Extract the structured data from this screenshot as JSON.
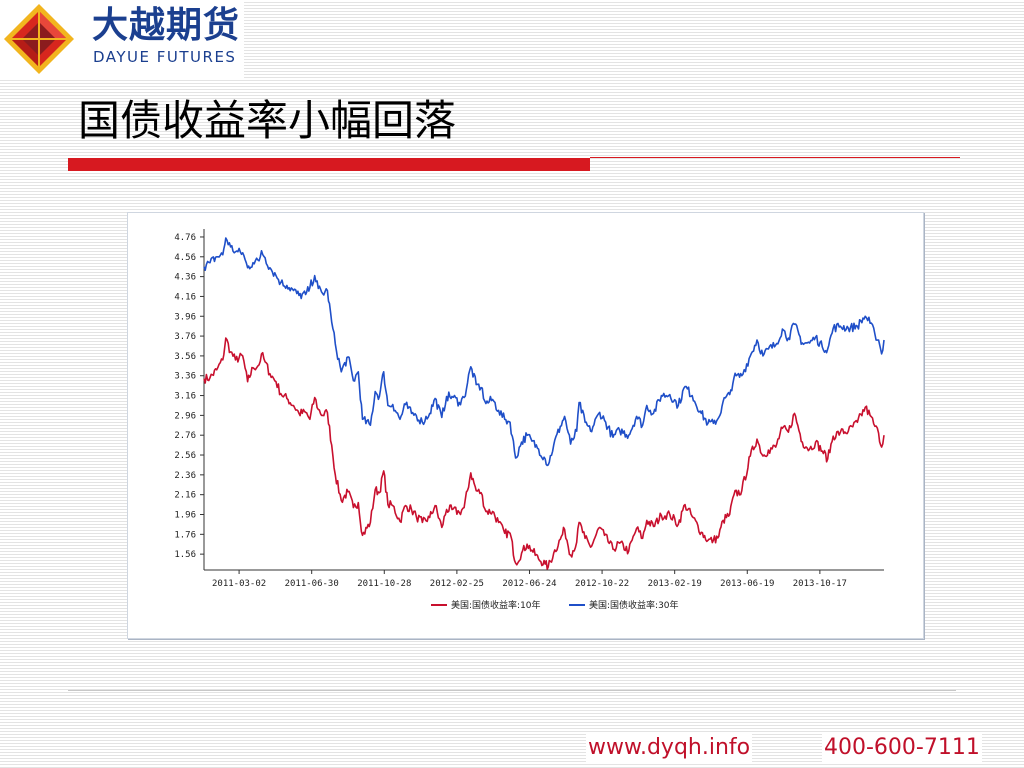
{
  "logo": {
    "cn": "大越期货",
    "en": "DAYUE FUTURES"
  },
  "slide": {
    "title": "国债收益率小幅回落"
  },
  "footer": {
    "url": "www.dyqh.info",
    "phone": "400-600-7111"
  },
  "colors": {
    "accent": "#d71920",
    "series_10y": "#c8102e",
    "series_30y": "#1f4fc8",
    "logo_blue": "#1b3f8f"
  },
  "chart_data": {
    "type": "line",
    "title": "",
    "xlabel": "",
    "ylabel": "",
    "ylim": [
      1.4,
      4.8
    ],
    "grid": false,
    "legend_position": "bottom-center",
    "y_ticks": [
      "4.76",
      "4.56",
      "4.36",
      "4.16",
      "3.96",
      "3.76",
      "3.56",
      "3.36",
      "3.16",
      "2.96",
      "2.76",
      "2.56",
      "2.36",
      "2.16",
      "1.96",
      "1.76",
      "1.56"
    ],
    "x_ticks": [
      "2011-03-02",
      "2011-06-30",
      "2011-10-28",
      "2012-02-25",
      "2012-06-24",
      "2012-10-22",
      "2013-02-19",
      "2013-06-19",
      "2013-10-17"
    ],
    "x_range": [
      "2011-01-03",
      "2014-01-31"
    ],
    "series": [
      {
        "name": "美国:国债收益率:10年",
        "color": "#c8102e",
        "points": [
          [
            "2011-01-03",
            3.33
          ],
          [
            "2011-01-13",
            3.34
          ],
          [
            "2011-01-24",
            3.42
          ],
          [
            "2011-02-03",
            3.52
          ],
          [
            "2011-02-08",
            3.74
          ],
          [
            "2011-02-16",
            3.6
          ],
          [
            "2011-02-24",
            3.52
          ],
          [
            "2011-03-08",
            3.56
          ],
          [
            "2011-03-16",
            3.3
          ],
          [
            "2011-03-25",
            3.44
          ],
          [
            "2011-04-04",
            3.47
          ],
          [
            "2011-04-08",
            3.58
          ],
          [
            "2011-04-14",
            3.5
          ],
          [
            "2011-04-22",
            3.38
          ],
          [
            "2011-05-02",
            3.3
          ],
          [
            "2011-05-10",
            3.18
          ],
          [
            "2011-05-20",
            3.13
          ],
          [
            "2011-05-31",
            3.06
          ],
          [
            "2011-06-09",
            2.98
          ],
          [
            "2011-06-20",
            2.99
          ],
          [
            "2011-06-27",
            2.92
          ],
          [
            "2011-07-05",
            3.14
          ],
          [
            "2011-07-11",
            3.02
          ],
          [
            "2011-07-18",
            2.96
          ],
          [
            "2011-07-26",
            2.99
          ],
          [
            "2011-08-02",
            2.66
          ],
          [
            "2011-08-08",
            2.36
          ],
          [
            "2011-08-18",
            2.1
          ],
          [
            "2011-08-29",
            2.19
          ],
          [
            "2011-09-07",
            2.03
          ],
          [
            "2011-09-15",
            2.08
          ],
          [
            "2011-09-22",
            1.75
          ],
          [
            "2011-10-05",
            1.88
          ],
          [
            "2011-10-13",
            2.21
          ],
          [
            "2011-10-20",
            2.18
          ],
          [
            "2011-10-27",
            2.4
          ],
          [
            "2011-11-03",
            2.06
          ],
          [
            "2011-11-11",
            2.05
          ],
          [
            "2011-11-23",
            1.89
          ],
          [
            "2011-12-02",
            2.05
          ],
          [
            "2011-12-12",
            2.01
          ],
          [
            "2011-12-20",
            1.94
          ],
          [
            "2011-12-30",
            1.88
          ],
          [
            "2012-01-11",
            1.93
          ],
          [
            "2012-01-20",
            2.05
          ],
          [
            "2012-01-31",
            1.83
          ],
          [
            "2012-02-08",
            2.01
          ],
          [
            "2012-02-17",
            2.01
          ],
          [
            "2012-02-29",
            1.98
          ],
          [
            "2012-03-08",
            2.03
          ],
          [
            "2012-03-19",
            2.38
          ],
          [
            "2012-03-28",
            2.2
          ],
          [
            "2012-04-05",
            2.18
          ],
          [
            "2012-04-13",
            1.99
          ],
          [
            "2012-04-24",
            1.99
          ],
          [
            "2012-05-04",
            1.88
          ],
          [
            "2012-05-14",
            1.77
          ],
          [
            "2012-05-23",
            1.77
          ],
          [
            "2012-06-01",
            1.47
          ],
          [
            "2012-06-11",
            1.57
          ],
          [
            "2012-06-20",
            1.66
          ],
          [
            "2012-06-28",
            1.6
          ],
          [
            "2012-07-09",
            1.51
          ],
          [
            "2012-07-20",
            1.46
          ],
          [
            "2012-07-25",
            1.43
          ],
          [
            "2012-08-03",
            1.57
          ],
          [
            "2012-08-14",
            1.71
          ],
          [
            "2012-08-21",
            1.81
          ],
          [
            "2012-08-31",
            1.55
          ],
          [
            "2012-09-10",
            1.68
          ],
          [
            "2012-09-14",
            1.88
          ],
          [
            "2012-09-24",
            1.72
          ],
          [
            "2012-10-03",
            1.63
          ],
          [
            "2012-10-18",
            1.83
          ],
          [
            "2012-10-26",
            1.75
          ],
          [
            "2012-11-09",
            1.61
          ],
          [
            "2012-11-20",
            1.67
          ],
          [
            "2012-12-05",
            1.59
          ],
          [
            "2012-12-18",
            1.82
          ],
          [
            "2012-12-28",
            1.72
          ],
          [
            "2013-01-04",
            1.9
          ],
          [
            "2013-01-15",
            1.84
          ],
          [
            "2013-01-28",
            1.95
          ],
          [
            "2013-02-11",
            1.96
          ],
          [
            "2013-02-25",
            1.86
          ],
          [
            "2013-03-08",
            2.06
          ],
          [
            "2013-03-20",
            1.94
          ],
          [
            "2013-04-04",
            1.78
          ],
          [
            "2013-04-15",
            1.7
          ],
          [
            "2013-04-24",
            1.7
          ],
          [
            "2013-05-03",
            1.74
          ],
          [
            "2013-05-10",
            1.9
          ],
          [
            "2013-05-21",
            1.96
          ],
          [
            "2013-05-28",
            2.16
          ],
          [
            "2013-06-10",
            2.2
          ],
          [
            "2013-06-24",
            2.55
          ],
          [
            "2013-07-05",
            2.72
          ],
          [
            "2013-07-15",
            2.55
          ],
          [
            "2013-07-24",
            2.61
          ],
          [
            "2013-08-05",
            2.64
          ],
          [
            "2013-08-16",
            2.83
          ],
          [
            "2013-08-26",
            2.79
          ],
          [
            "2013-09-05",
            2.98
          ],
          [
            "2013-09-18",
            2.69
          ],
          [
            "2013-09-30",
            2.62
          ],
          [
            "2013-10-10",
            2.69
          ],
          [
            "2013-10-21",
            2.6
          ],
          [
            "2013-10-30",
            2.52
          ],
          [
            "2013-11-08",
            2.75
          ],
          [
            "2013-11-20",
            2.79
          ],
          [
            "2013-12-03",
            2.8
          ],
          [
            "2013-12-18",
            2.89
          ],
          [
            "2013-12-31",
            3.04
          ],
          [
            "2014-01-08",
            2.96
          ],
          [
            "2014-01-16",
            2.85
          ],
          [
            "2014-01-22",
            2.78
          ],
          [
            "2014-01-27",
            2.64
          ],
          [
            "2014-01-31",
            2.76
          ]
        ]
      },
      {
        "name": "美国:国债收益率:30年",
        "color": "#1f4fc8",
        "points": [
          [
            "2011-01-03",
            4.46
          ],
          [
            "2011-01-13",
            4.5
          ],
          [
            "2011-01-24",
            4.56
          ],
          [
            "2011-02-03",
            4.58
          ],
          [
            "2011-02-08",
            4.75
          ],
          [
            "2011-02-16",
            4.66
          ],
          [
            "2011-02-24",
            4.61
          ],
          [
            "2011-03-08",
            4.6
          ],
          [
            "2011-03-16",
            4.45
          ],
          [
            "2011-03-25",
            4.5
          ],
          [
            "2011-04-04",
            4.52
          ],
          [
            "2011-04-08",
            4.62
          ],
          [
            "2011-04-14",
            4.55
          ],
          [
            "2011-04-22",
            4.45
          ],
          [
            "2011-05-02",
            4.37
          ],
          [
            "2011-05-10",
            4.3
          ],
          [
            "2011-05-20",
            4.27
          ],
          [
            "2011-05-31",
            4.22
          ],
          [
            "2011-06-09",
            4.17
          ],
          [
            "2011-06-20",
            4.18
          ],
          [
            "2011-06-27",
            4.25
          ],
          [
            "2011-07-05",
            4.37
          ],
          [
            "2011-07-11",
            4.24
          ],
          [
            "2011-07-18",
            4.19
          ],
          [
            "2011-07-26",
            4.22
          ],
          [
            "2011-08-02",
            3.9
          ],
          [
            "2011-08-08",
            3.68
          ],
          [
            "2011-08-18",
            3.4
          ],
          [
            "2011-08-29",
            3.55
          ],
          [
            "2011-09-07",
            3.31
          ],
          [
            "2011-09-15",
            3.4
          ],
          [
            "2011-09-22",
            2.92
          ],
          [
            "2011-10-05",
            2.86
          ],
          [
            "2011-10-13",
            3.2
          ],
          [
            "2011-10-20",
            3.15
          ],
          [
            "2011-10-27",
            3.4
          ],
          [
            "2011-11-03",
            3.06
          ],
          [
            "2011-11-11",
            3.07
          ],
          [
            "2011-11-23",
            2.92
          ],
          [
            "2011-12-02",
            3.07
          ],
          [
            "2011-12-12",
            2.98
          ],
          [
            "2011-12-20",
            2.96
          ],
          [
            "2011-12-30",
            2.89
          ],
          [
            "2012-01-11",
            2.98
          ],
          [
            "2012-01-20",
            3.13
          ],
          [
            "2012-01-31",
            2.94
          ],
          [
            "2012-02-08",
            3.15
          ],
          [
            "2012-02-17",
            3.15
          ],
          [
            "2012-02-29",
            3.09
          ],
          [
            "2012-03-08",
            3.14
          ],
          [
            "2012-03-19",
            3.45
          ],
          [
            "2012-03-28",
            3.27
          ],
          [
            "2012-04-05",
            3.24
          ],
          [
            "2012-04-13",
            3.08
          ],
          [
            "2012-04-24",
            3.12
          ],
          [
            "2012-05-04",
            3.01
          ],
          [
            "2012-05-14",
            2.92
          ],
          [
            "2012-05-23",
            2.89
          ],
          [
            "2012-06-01",
            2.53
          ],
          [
            "2012-06-11",
            2.69
          ],
          [
            "2012-06-20",
            2.76
          ],
          [
            "2012-06-28",
            2.7
          ],
          [
            "2012-07-09",
            2.62
          ],
          [
            "2012-07-20",
            2.52
          ],
          [
            "2012-07-25",
            2.46
          ],
          [
            "2012-08-03",
            2.66
          ],
          [
            "2012-08-14",
            2.85
          ],
          [
            "2012-08-21",
            2.95
          ],
          [
            "2012-08-31",
            2.67
          ],
          [
            "2012-09-10",
            2.8
          ],
          [
            "2012-09-14",
            3.09
          ],
          [
            "2012-09-24",
            2.89
          ],
          [
            "2012-10-03",
            2.8
          ],
          [
            "2012-10-18",
            2.99
          ],
          [
            "2012-10-26",
            2.91
          ],
          [
            "2012-11-09",
            2.74
          ],
          [
            "2012-11-20",
            2.81
          ],
          [
            "2012-12-05",
            2.76
          ],
          [
            "2012-12-18",
            2.95
          ],
          [
            "2012-12-28",
            2.86
          ],
          [
            "2013-01-04",
            3.06
          ],
          [
            "2013-01-15",
            2.98
          ],
          [
            "2013-01-28",
            3.16
          ],
          [
            "2013-02-11",
            3.17
          ],
          [
            "2013-02-25",
            3.06
          ],
          [
            "2013-03-08",
            3.25
          ],
          [
            "2013-03-20",
            3.16
          ],
          [
            "2013-04-04",
            2.98
          ],
          [
            "2013-04-15",
            2.88
          ],
          [
            "2013-04-24",
            2.88
          ],
          [
            "2013-05-03",
            2.94
          ],
          [
            "2013-05-10",
            3.1
          ],
          [
            "2013-05-21",
            3.17
          ],
          [
            "2013-05-28",
            3.34
          ],
          [
            "2013-06-10",
            3.36
          ],
          [
            "2013-06-24",
            3.56
          ],
          [
            "2013-07-05",
            3.72
          ],
          [
            "2013-07-15",
            3.56
          ],
          [
            "2013-07-24",
            3.63
          ],
          [
            "2013-08-05",
            3.67
          ],
          [
            "2013-08-16",
            3.83
          ],
          [
            "2013-08-26",
            3.74
          ],
          [
            "2013-09-05",
            3.88
          ],
          [
            "2013-09-18",
            3.69
          ],
          [
            "2013-09-30",
            3.69
          ],
          [
            "2013-10-10",
            3.75
          ],
          [
            "2013-10-21",
            3.65
          ],
          [
            "2013-10-30",
            3.63
          ],
          [
            "2013-11-08",
            3.84
          ],
          [
            "2013-11-20",
            3.86
          ],
          [
            "2013-12-03",
            3.84
          ],
          [
            "2013-12-18",
            3.86
          ],
          [
            "2013-12-31",
            3.96
          ],
          [
            "2014-01-08",
            3.89
          ],
          [
            "2014-01-16",
            3.78
          ],
          [
            "2014-01-22",
            3.72
          ],
          [
            "2014-01-27",
            3.58
          ],
          [
            "2014-01-31",
            3.72
          ]
        ]
      }
    ]
  }
}
